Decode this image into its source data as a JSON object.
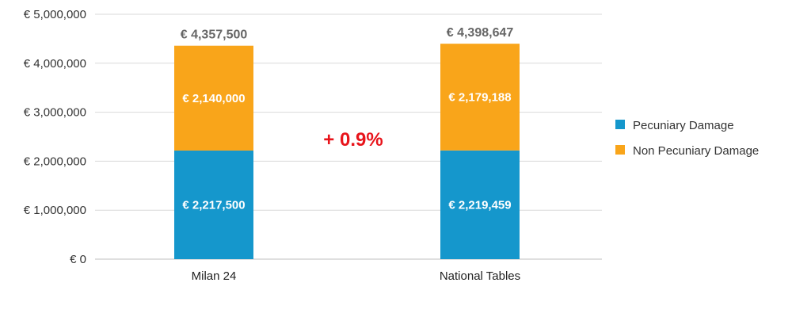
{
  "chart_data": {
    "type": "bar",
    "stacked": true,
    "categories": [
      "Milan 24",
      "National Tables"
    ],
    "series": [
      {
        "name": "Pecuniary Damage",
        "values": [
          2217500,
          2219459
        ],
        "color": "#1597CC",
        "labels": [
          "€ 2,217,500",
          "€ 2,219,459"
        ]
      },
      {
        "name": "Non Pecuniary Damage",
        "values": [
          2140000,
          2179188
        ],
        "color": "#F9A51A",
        "labels": [
          "€ 2,140,000",
          "€ 2,179,188"
        ]
      }
    ],
    "totals": [
      4357500,
      4398647
    ],
    "total_labels": [
      "€ 4,357,500",
      "€ 4,398,647"
    ],
    "ylim": [
      0,
      5000000
    ],
    "yticks": [
      0,
      1000000,
      2000000,
      3000000,
      4000000,
      5000000
    ],
    "ytick_labels": [
      "€ 0",
      "€ 1,000,000",
      "€ 2,000,000",
      "€ 3,000,000",
      "€ 4,000,000",
      "€ 5,000,000"
    ],
    "annotation": {
      "text": "+ 0.9%",
      "color": "#E8141B"
    },
    "grid": true,
    "legend_position": "right"
  }
}
